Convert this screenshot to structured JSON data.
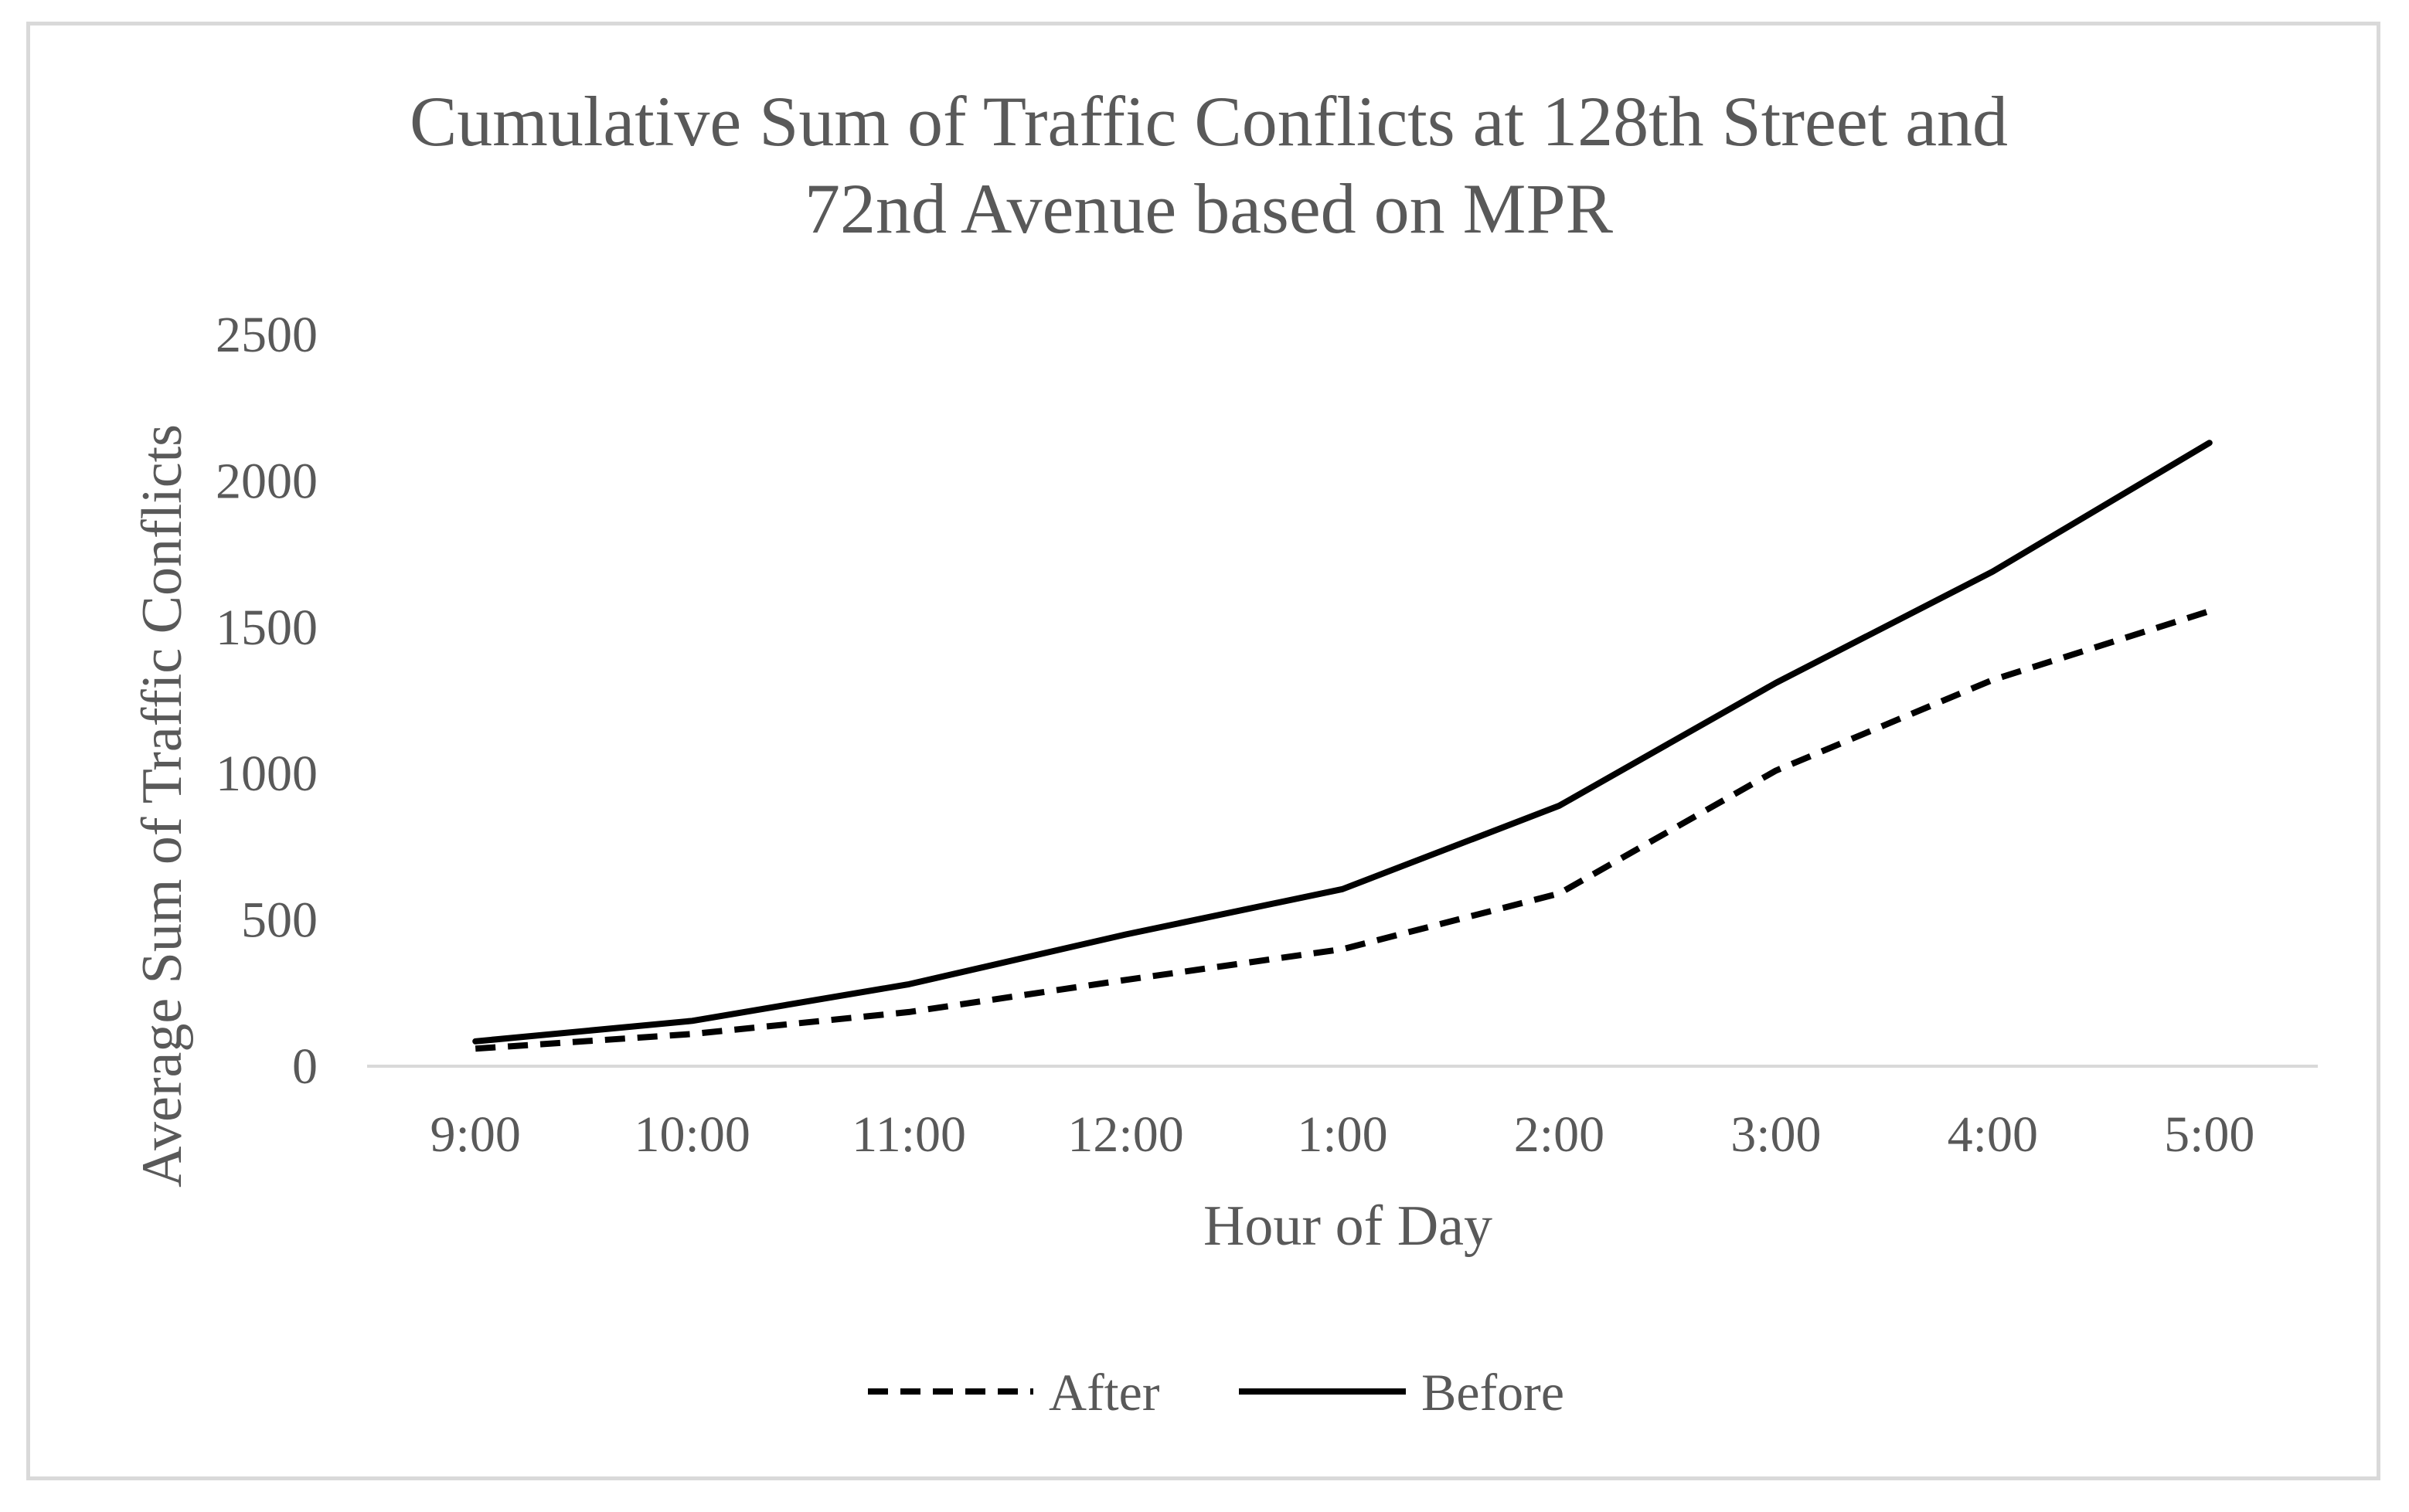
{
  "chart_data": {
    "type": "line",
    "title_lines": [
      "Cumulative Sum of Traffic Conflicts at 128th Street and",
      "72nd Avenue based on MPR"
    ],
    "xlabel": "Hour of Day",
    "ylabel": "Average Sum of Traffic Conflicts",
    "categories": [
      "9:00",
      "10:00",
      "11:00",
      "12:00",
      "1:00",
      "2:00",
      "3:00",
      "4:00",
      "5:00"
    ],
    "ylim": [
      0,
      2500
    ],
    "yticks": [
      "0",
      "500",
      "1000",
      "1500",
      "2000",
      "2500"
    ],
    "grid": false,
    "legend_position": "bottom",
    "series": [
      {
        "name": "After",
        "style": "dashed",
        "color": "#000000",
        "values": [
          60,
          110,
          185,
          295,
          400,
          590,
          1010,
          1320,
          1555
        ]
      },
      {
        "name": "Before",
        "style": "solid",
        "color": "#000000",
        "values": [
          85,
          155,
          280,
          450,
          605,
          890,
          1310,
          1690,
          2130
        ]
      }
    ]
  },
  "colors": {
    "text": "#595959",
    "axis": "#d9d9d9",
    "line": "#000000"
  }
}
